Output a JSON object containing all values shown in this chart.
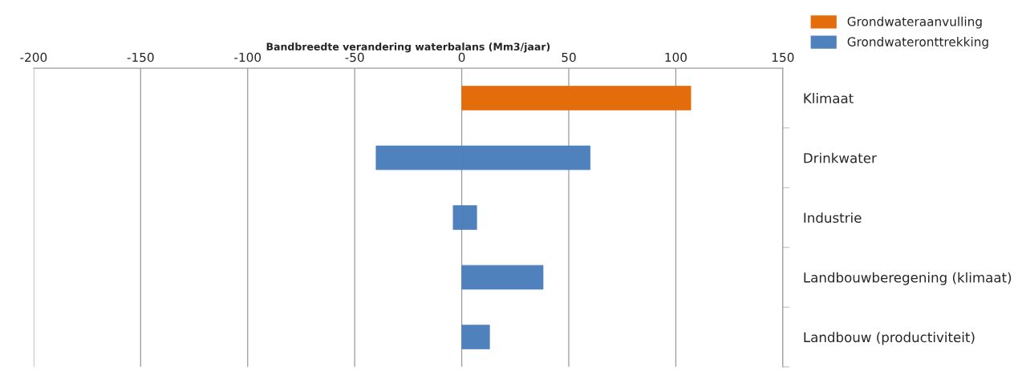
{
  "chart_data": {
    "type": "bar",
    "orientation": "horizontal",
    "xlabel": "Bandbreedte verandering waterbalans (Mm3/jaar)",
    "categories": [
      "Klimaat",
      "Drinkwater",
      "Industrie",
      "Landbouwberegening (klimaat)",
      "Landbouw (productiviteit)"
    ],
    "series": [
      {
        "name": "Grondwateraanvulling",
        "color": "#e46c0a",
        "values": [
          107,
          null,
          null,
          null,
          null
        ]
      },
      {
        "name": "Grondwateronttrekking",
        "color": "#4f81bd",
        "values": [
          null,
          60,
          7,
          38,
          13
        ]
      },
      {
        "color": "#4f81bd",
        "values": [
          null,
          -40,
          -4,
          null,
          null
        ]
      }
    ],
    "xlim": [
      -200,
      150
    ],
    "xticks": [
      -200,
      -150,
      -100,
      -50,
      0,
      50,
      100,
      150
    ],
    "grid": "x",
    "legend": "top right"
  }
}
